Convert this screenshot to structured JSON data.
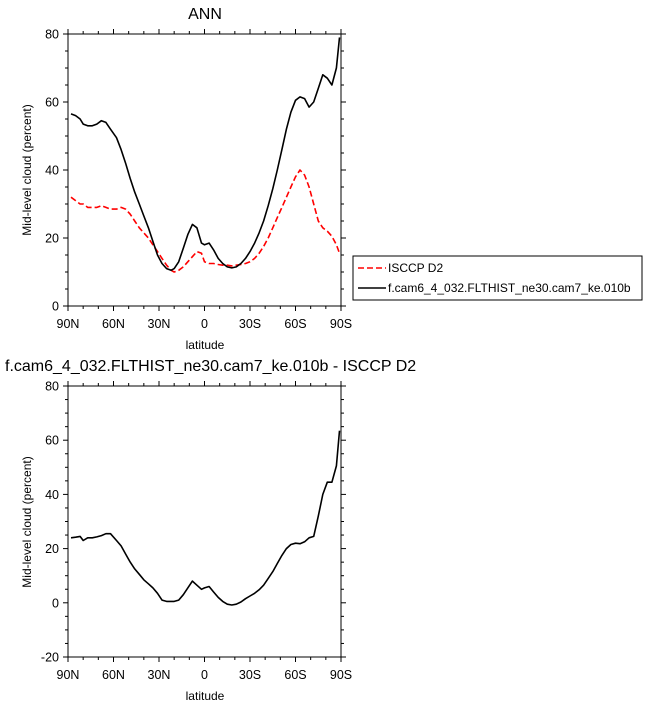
{
  "chart_data": [
    {
      "type": "line",
      "title": "ANN",
      "xlabel": "latitude",
      "ylabel": "Mid-level cloud (percent)",
      "xlim": [
        90,
        -90
      ],
      "ylim": [
        0,
        80
      ],
      "x_ticks": [
        {
          "value": 90,
          "label": "90N"
        },
        {
          "value": 60,
          "label": "60N"
        },
        {
          "value": 30,
          "label": "30N"
        },
        {
          "value": 0,
          "label": "0"
        },
        {
          "value": -30,
          "label": "30S"
        },
        {
          "value": -60,
          "label": "60S"
        },
        {
          "value": -90,
          "label": "90S"
        }
      ],
      "y_ticks": [
        0,
        20,
        40,
        60,
        80
      ],
      "grid": false,
      "legend_position": "right",
      "series": [
        {
          "name": "ISCCP D2",
          "color": "#ff0000",
          "dashed": true,
          "x": [
            88,
            85,
            82,
            80,
            77,
            74,
            71,
            68,
            65,
            62,
            58,
            55,
            52,
            49,
            46,
            43,
            40,
            37,
            34,
            31,
            28,
            25,
            22,
            20,
            17,
            14,
            11,
            8,
            5,
            2,
            0,
            -3,
            -6,
            -9,
            -12,
            -15,
            -18,
            -21,
            -24,
            -27,
            -30,
            -33,
            -36,
            -39,
            -42,
            -45,
            -48,
            -51,
            -54,
            -57,
            -60,
            -63,
            -66,
            -69,
            -72,
            -75,
            -78,
            -81,
            -84,
            -87,
            -89
          ],
          "values": [
            32,
            31,
            30,
            30,
            29,
            29,
            29,
            29.5,
            29,
            28.5,
            28.5,
            29,
            28.5,
            27,
            25,
            23,
            21.5,
            20,
            18,
            16,
            14,
            12,
            10.5,
            10,
            10.5,
            11.5,
            13,
            14.5,
            16,
            15.5,
            13,
            12.5,
            12.5,
            12.2,
            12,
            12,
            11.8,
            12,
            12.2,
            12.5,
            13,
            14,
            15.5,
            17.5,
            20,
            23,
            26,
            29,
            32,
            35,
            38,
            40,
            38.5,
            35,
            30,
            25,
            23,
            22,
            20.5,
            18,
            15.5
          ]
        },
        {
          "name": "f.cam6_4_032.FLTHIST_ne30.cam7_ke.010b",
          "color": "#000000",
          "dashed": false,
          "x": [
            88,
            85,
            82,
            80,
            77,
            74,
            71,
            68,
            65,
            62,
            58,
            55,
            52,
            49,
            46,
            43,
            40,
            37,
            34,
            31,
            28,
            25,
            22,
            20,
            17,
            14,
            11,
            8,
            5,
            2,
            0,
            -3,
            -6,
            -9,
            -12,
            -15,
            -18,
            -21,
            -24,
            -27,
            -30,
            -33,
            -36,
            -39,
            -42,
            -45,
            -48,
            -51,
            -54,
            -57,
            -60,
            -63,
            -66,
            -69,
            -72,
            -75,
            -78,
            -81,
            -84,
            -87,
            -89
          ],
          "values": [
            56.5,
            56,
            55,
            53.5,
            53,
            53,
            53.5,
            54.5,
            54,
            52,
            49.5,
            46,
            42,
            37.5,
            33.5,
            30,
            26.5,
            23,
            19,
            15,
            12.5,
            11,
            10.5,
            11,
            13,
            17,
            21,
            24,
            23,
            18.5,
            18,
            18.5,
            16.5,
            14,
            12.5,
            11.5,
            11.2,
            11.5,
            12.5,
            14,
            16,
            18.5,
            21.5,
            25,
            29.5,
            34.5,
            40,
            46,
            52,
            57,
            60.5,
            61.5,
            61,
            58.5,
            60,
            64,
            68,
            67,
            65,
            70,
            79
          ]
        }
      ]
    },
    {
      "type": "line",
      "title": "f.cam6_4_032.FLTHIST_ne30.cam7_ke.010b - ISCCP D2",
      "xlabel": "latitude",
      "ylabel": "Mid-level cloud (percent)",
      "xlim": [
        90,
        -90
      ],
      "ylim": [
        -20,
        80
      ],
      "x_ticks": [
        {
          "value": 90,
          "label": "90N"
        },
        {
          "value": 60,
          "label": "60N"
        },
        {
          "value": 30,
          "label": "30N"
        },
        {
          "value": 0,
          "label": "0"
        },
        {
          "value": -30,
          "label": "30S"
        },
        {
          "value": -60,
          "label": "60S"
        },
        {
          "value": -90,
          "label": "90S"
        }
      ],
      "y_ticks": [
        -20,
        0,
        20,
        40,
        60,
        80
      ],
      "grid": false,
      "series": [
        {
          "color": "#000000",
          "dashed": false,
          "x": [
            88,
            85,
            82,
            80,
            77,
            74,
            71,
            68,
            65,
            62,
            58,
            55,
            52,
            49,
            46,
            43,
            40,
            37,
            34,
            31,
            28,
            25,
            22,
            20,
            17,
            14,
            11,
            8,
            5,
            2,
            0,
            -3,
            -6,
            -9,
            -12,
            -15,
            -18,
            -21,
            -24,
            -27,
            -30,
            -33,
            -36,
            -39,
            -42,
            -45,
            -48,
            -51,
            -54,
            -57,
            -60,
            -63,
            -66,
            -69,
            -72,
            -75,
            -78,
            -81,
            -84,
            -87,
            -89
          ],
          "values": [
            24,
            24.2,
            24.5,
            23,
            24,
            24,
            24.3,
            24.8,
            25.5,
            25.5,
            23,
            21,
            18,
            15,
            12.5,
            10.5,
            8.5,
            7,
            5.5,
            3.5,
            1,
            0.5,
            0.5,
            0.5,
            1,
            3,
            5.5,
            8,
            6.5,
            5,
            5.5,
            6,
            4,
            2,
            0.5,
            -0.5,
            -0.8,
            -0.5,
            0.3,
            1.5,
            2.5,
            3.5,
            4.8,
            6.5,
            9,
            11.5,
            14.5,
            17.5,
            20,
            21.5,
            22,
            21.8,
            22.5,
            24,
            24.5,
            32,
            40,
            44.5,
            44.5,
            50.5,
            63.5
          ]
        }
      ]
    }
  ]
}
